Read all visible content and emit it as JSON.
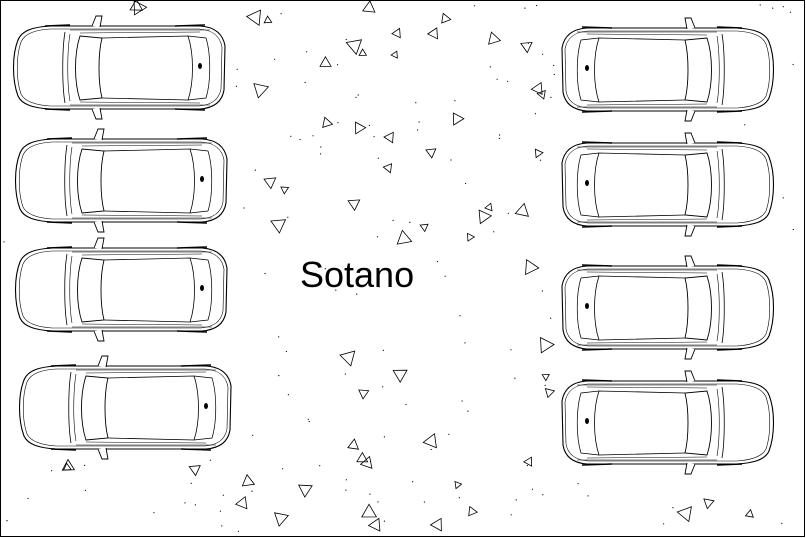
{
  "drawing": {
    "room_label": "Sotano",
    "line_color": "#000000",
    "background": "#ffffff",
    "vehicle_icon": "car-top-view-icon",
    "hatch_pattern": "concrete-triangle-speckle"
  }
}
